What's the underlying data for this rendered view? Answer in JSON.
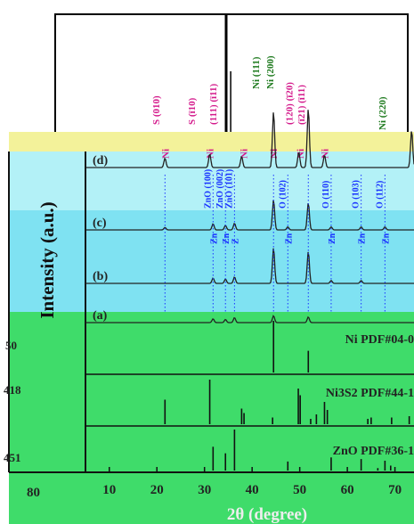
{
  "chart_data": {
    "type": "line",
    "xlabel": "2θ (degree)",
    "ylabel": "Intensity (a.u.)",
    "x_ticks": [
      "10",
      "20",
      "30",
      "40",
      "50",
      "60",
      "70"
    ],
    "xlim": [
      5,
      74
    ],
    "left_cut_labels": {
      "ticks_left": [
        "80"
      ],
      "pdf_numbers": [
        "50",
        "418",
        "451"
      ]
    },
    "colors": {
      "inset_bg": "#ffffff",
      "hkl_magenta": "#d41b8c",
      "hkl_green": "#1e7a1e",
      "yellow_band": "#f3f29a",
      "cyan_panel": "#b3f1f7",
      "blue_panel": "#7fe2f2",
      "green_panel": "#3fdc6a",
      "zno_blue": "#1a33ff",
      "trace": "#222222"
    },
    "hkl_labels_ni3s2": [
      {
        "text": "S (010)",
        "x": 20.5
      },
      {
        "text": "S (ī10)",
        "x": 28.0
      },
      {
        "text": "(111) (ī11)",
        "x": 32.5
      },
      {
        "text": "(120) (ī20)",
        "x": 48.5
      },
      {
        "text": "(ī21) (ī11)",
        "x": 51.0
      }
    ],
    "hkl_labels_ni": [
      {
        "text": "Ni (111)",
        "x": 41.5
      },
      {
        "text": "Ni (200)",
        "x": 44.5
      },
      {
        "text": "Ni (220)",
        "x": 68.0
      }
    ],
    "trace_labels": [
      "(d)",
      "(c)",
      "(b)",
      "(a)"
    ],
    "zno_labels": [
      {
        "text": "ZnO (100)",
        "x": 31.8
      },
      {
        "text": "ZnO (002)",
        "x": 34.4
      },
      {
        "text": "ZnO (101)",
        "x": 36.3
      },
      {
        "text": "O (102)",
        "x": 47.5
      },
      {
        "text": "O (110)",
        "x": 56.6
      },
      {
        "text": "O (103)",
        "x": 62.9
      },
      {
        "text": "O (112)",
        "x": 67.9
      }
    ],
    "zn_marks": [
      {
        "text": "Zn",
        "x": 31.8
      },
      {
        "text": "Zn",
        "x": 34.4
      },
      {
        "text": "Z",
        "x": 36.3
      },
      {
        "text": "Zn",
        "x": 47.5
      },
      {
        "text": "Zn",
        "x": 56.6
      },
      {
        "text": "Zn",
        "x": 62.9
      },
      {
        "text": "Zn",
        "x": 67.9
      }
    ],
    "ni_marks": [
      {
        "text": "Ni",
        "x": 21.7
      },
      {
        "text": "Ni",
        "x": 31.1
      },
      {
        "text": "Ni",
        "x": 38.2
      },
      {
        "text": "Ni",
        "x": 44.5
      },
      {
        "text": "Ni",
        "x": 50.1
      },
      {
        "text": "Ni",
        "x": 55.2
      }
    ],
    "series": [
      {
        "name": "(d)",
        "peaks": [
          {
            "x": 21.7,
            "h": 0.15
          },
          {
            "x": 31.1,
            "h": 0.22
          },
          {
            "x": 37.8,
            "h": 0.18
          },
          {
            "x": 44.5,
            "h": 0.9
          },
          {
            "x": 49.8,
            "h": 0.25
          },
          {
            "x": 51.8,
            "h": 0.95
          },
          {
            "x": 55.2,
            "h": 0.2
          },
          {
            "x": 73.5,
            "h": 0.6
          }
        ]
      },
      {
        "name": "(c)",
        "peaks": [
          {
            "x": 21.7,
            "h": 0.08
          },
          {
            "x": 31.8,
            "h": 0.2
          },
          {
            "x": 34.4,
            "h": 0.15
          },
          {
            "x": 36.3,
            "h": 0.22
          },
          {
            "x": 44.5,
            "h": 1.0
          },
          {
            "x": 47.5,
            "h": 0.1
          },
          {
            "x": 51.8,
            "h": 0.9
          },
          {
            "x": 56.6,
            "h": 0.1
          },
          {
            "x": 62.9,
            "h": 0.1
          },
          {
            "x": 67.9,
            "h": 0.1
          }
        ]
      },
      {
        "name": "(b)",
        "peaks": [
          {
            "x": 31.8,
            "h": 0.15
          },
          {
            "x": 34.4,
            "h": 0.12
          },
          {
            "x": 36.3,
            "h": 0.18
          },
          {
            "x": 44.5,
            "h": 1.0
          },
          {
            "x": 51.8,
            "h": 0.9
          },
          {
            "x": 56.6,
            "h": 0.08
          },
          {
            "x": 62.9,
            "h": 0.08
          }
        ]
      },
      {
        "name": "(a)",
        "peaks": [
          {
            "x": 31.8,
            "h": 0.3
          },
          {
            "x": 34.4,
            "h": 0.25
          },
          {
            "x": 36.3,
            "h": 0.4
          },
          {
            "x": 44.5,
            "h": 0.55
          },
          {
            "x": 51.8,
            "h": 0.45
          }
        ]
      }
    ],
    "pdf_refs": [
      {
        "name": "Ni PDF#04-0",
        "lines": [
          {
            "x": 44.5,
            "h": 1.0
          },
          {
            "x": 51.8,
            "h": 0.42
          }
        ]
      },
      {
        "name": "Ni3S2 PDF#44-1",
        "lines": [
          {
            "x": 21.7,
            "h": 0.55
          },
          {
            "x": 31.1,
            "h": 1.0
          },
          {
            "x": 37.8,
            "h": 0.35
          },
          {
            "x": 38.3,
            "h": 0.25
          },
          {
            "x": 44.3,
            "h": 0.15
          },
          {
            "x": 49.7,
            "h": 0.8
          },
          {
            "x": 50.1,
            "h": 0.65
          },
          {
            "x": 52.3,
            "h": 0.12
          },
          {
            "x": 53.5,
            "h": 0.22
          },
          {
            "x": 55.2,
            "h": 0.5
          },
          {
            "x": 55.8,
            "h": 0.32
          },
          {
            "x": 64.3,
            "h": 0.12
          },
          {
            "x": 65.0,
            "h": 0.15
          },
          {
            "x": 69.3,
            "h": 0.15
          },
          {
            "x": 73.0,
            "h": 0.18
          }
        ]
      },
      {
        "name": "ZnO PDF#36-1",
        "lines": [
          {
            "x": 31.8,
            "h": 0.58
          },
          {
            "x": 34.4,
            "h": 0.42
          },
          {
            "x": 36.3,
            "h": 1.0
          },
          {
            "x": 47.5,
            "h": 0.22
          },
          {
            "x": 56.6,
            "h": 0.32
          },
          {
            "x": 62.9,
            "h": 0.28
          },
          {
            "x": 66.4,
            "h": 0.06
          },
          {
            "x": 67.9,
            "h": 0.24
          },
          {
            "x": 69.1,
            "h": 0.12
          }
        ]
      }
    ],
    "inset_lines_x": [
      35.5
    ]
  }
}
